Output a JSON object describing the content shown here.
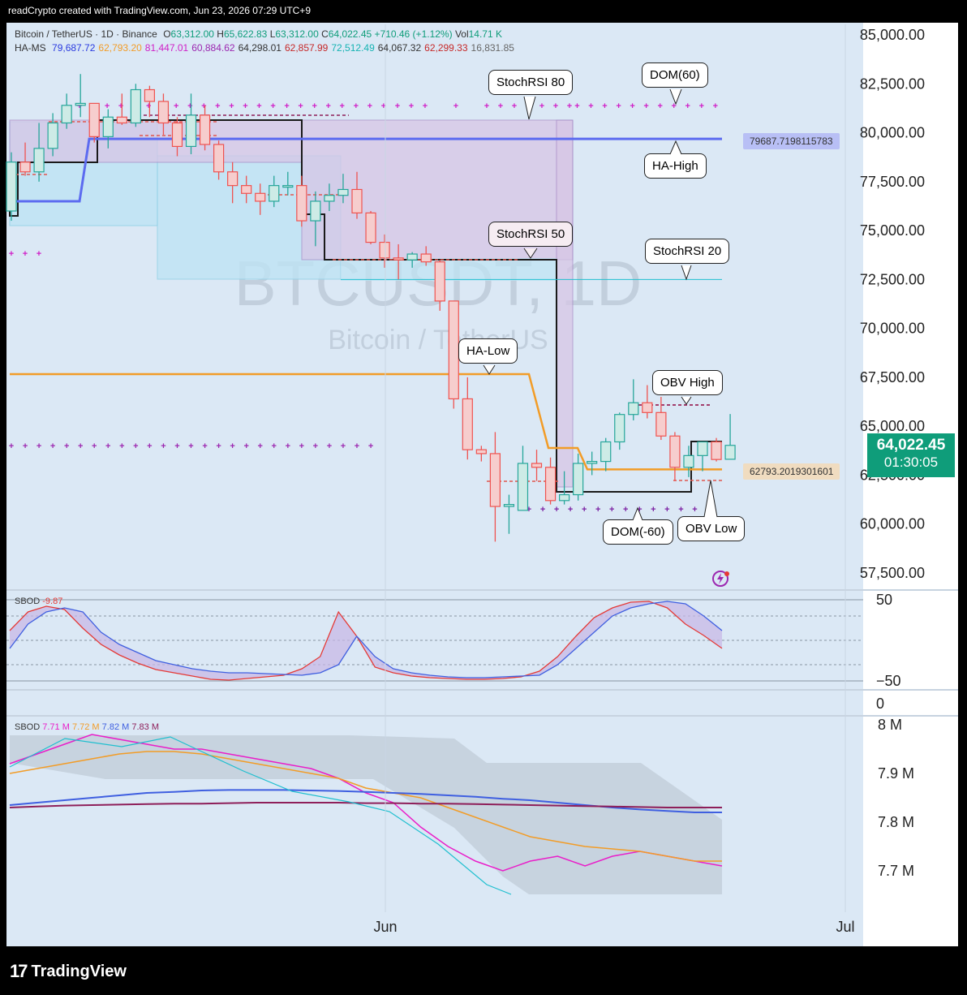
{
  "header": {
    "text": "readCrypto created with TradingView.com, Jun 23, 2026 07:29 UTC+9"
  },
  "legend": {
    "symbol": "Bitcoin / TetherUS · 1D · Binance",
    "o_label": "O",
    "o": "63,312.00",
    "h_label": "H",
    "h": "65,622.83",
    "l_label": "L",
    "l": "63,312.00",
    "c_label": "C",
    "c": "64,022.45",
    "change": "+710.46 (+1.12%)",
    "vol_label": "Vol",
    "vol": "14.71 K",
    "ha_ms_label": "HA-MS",
    "ha_ms_values": [
      {
        "v": "79,687.72",
        "color": "#2a3adf"
      },
      {
        "v": "62,793.20",
        "color": "#f29c27"
      },
      {
        "v": "81,447.01",
        "color": "#d01fc7"
      },
      {
        "v": "60,884.62",
        "color": "#9c27b0"
      },
      {
        "v": "64,298.01",
        "color": "#333333"
      },
      {
        "v": "62,857.99",
        "color": "#c62828"
      },
      {
        "v": "72,512.49",
        "color": "#16b3b3"
      },
      {
        "v": "64,067.32",
        "color": "#333333"
      },
      {
        "v": "62,299.33",
        "color": "#c62828"
      },
      {
        "v": "16,831.85",
        "color": "#666666"
      }
    ]
  },
  "watermark": {
    "symbol": "BTCUSDT, 1D",
    "name": "Bitcoin / TetherUS"
  },
  "annotations": {
    "stochrsi80": "StochRSI 80",
    "dom60": "DOM(60)",
    "ha_high": "HA-High",
    "stochrsi50": "StochRSI 50",
    "stochrsi20": "StochRSI 20",
    "ha_low": "HA-Low",
    "obv_high": "OBV High",
    "dom_neg60": "DOM(-60)",
    "obv_low": "OBV Low"
  },
  "tags": {
    "ha_high_tag": "79687.7198115783",
    "ha_low_tag": "62793.2019301601"
  },
  "price_box": {
    "price": "64,022.45",
    "countdown": "01:30:05"
  },
  "price_axis": [
    "85,000.00",
    "82,500.00",
    "80,000.00",
    "77,500.00",
    "75,000.00",
    "72,500.00",
    "70,000.00",
    "67,500.00",
    "65,000.00",
    "62,500.00",
    "60,000.00",
    "57,500.00"
  ],
  "sbod1": {
    "label": "SBOD",
    "value": "-9.87",
    "ticks": [
      "50",
      "−50",
      "0"
    ]
  },
  "sbod2": {
    "label": "SBOD",
    "v1": "7.71 M",
    "v2": "7.72 M",
    "v3": "7.82 M",
    "v4": "7.83 M",
    "ticks": [
      "8 M",
      "7.9 M",
      "7.8 M",
      "7.7 M"
    ]
  },
  "time_axis": [
    "Jun",
    "Jul"
  ],
  "footer": {
    "brand": "TradingView"
  },
  "colors": {
    "up": "#26a69a",
    "down": "#ef5350",
    "ha_high": "#5c6bf0",
    "ha_low": "#f29c27",
    "obv": "#1fbfcf",
    "price_box": "#0f9d7a"
  },
  "chart_data": [
    {
      "type": "candlestick",
      "title": "Bitcoin / TetherUS · 1D · Binance",
      "ylim": [
        56500,
        86000
      ],
      "candles": [
        {
          "o": 76000,
          "h": 79000,
          "l": 75500,
          "c": 78500
        },
        {
          "o": 78500,
          "h": 79500,
          "l": 77800,
          "c": 78000
        },
        {
          "o": 78000,
          "h": 80500,
          "l": 77500,
          "c": 79200
        },
        {
          "o": 79200,
          "h": 81000,
          "l": 78800,
          "c": 80500
        },
        {
          "o": 80500,
          "h": 82000,
          "l": 80200,
          "c": 81400
        },
        {
          "o": 81400,
          "h": 83000,
          "l": 80800,
          "c": 81500
        },
        {
          "o": 81500,
          "h": 81500,
          "l": 79500,
          "c": 79800
        },
        {
          "o": 79800,
          "h": 81200,
          "l": 79200,
          "c": 80800
        },
        {
          "o": 80800,
          "h": 82000,
          "l": 80400,
          "c": 80500
        },
        {
          "o": 80500,
          "h": 82500,
          "l": 80300,
          "c": 82200
        },
        {
          "o": 82200,
          "h": 82400,
          "l": 80800,
          "c": 81600
        },
        {
          "o": 81600,
          "h": 82000,
          "l": 79900,
          "c": 80500
        },
        {
          "o": 80500,
          "h": 80800,
          "l": 78800,
          "c": 79300
        },
        {
          "o": 79300,
          "h": 82000,
          "l": 78900,
          "c": 80900
        },
        {
          "o": 80900,
          "h": 81400,
          "l": 79100,
          "c": 79400
        },
        {
          "o": 79400,
          "h": 79600,
          "l": 77600,
          "c": 78000
        },
        {
          "o": 78000,
          "h": 78500,
          "l": 76400,
          "c": 77300
        },
        {
          "o": 77300,
          "h": 77800,
          "l": 76400,
          "c": 76900
        },
        {
          "o": 76900,
          "h": 77400,
          "l": 75800,
          "c": 76500
        },
        {
          "o": 76500,
          "h": 77800,
          "l": 76200,
          "c": 77300
        },
        {
          "o": 77300,
          "h": 78000,
          "l": 76800,
          "c": 77300
        },
        {
          "o": 77300,
          "h": 77800,
          "l": 75200,
          "c": 75500
        },
        {
          "o": 75500,
          "h": 77000,
          "l": 74200,
          "c": 76500
        },
        {
          "o": 76500,
          "h": 77400,
          "l": 76000,
          "c": 76800
        },
        {
          "o": 76800,
          "h": 77900,
          "l": 76400,
          "c": 77100
        },
        {
          "o": 77100,
          "h": 78000,
          "l": 75600,
          "c": 75900
        },
        {
          "o": 75900,
          "h": 76000,
          "l": 74300,
          "c": 74400
        },
        {
          "o": 74400,
          "h": 74800,
          "l": 73100,
          "c": 73600
        },
        {
          "o": 73600,
          "h": 74300,
          "l": 72500,
          "c": 73500
        },
        {
          "o": 73500,
          "h": 73900,
          "l": 73100,
          "c": 73800
        },
        {
          "o": 73800,
          "h": 74200,
          "l": 73200,
          "c": 73400
        },
        {
          "o": 73400,
          "h": 73500,
          "l": 70900,
          "c": 71400
        },
        {
          "o": 71400,
          "h": 71400,
          "l": 65900,
          "c": 66400
        },
        {
          "o": 66400,
          "h": 67500,
          "l": 63300,
          "c": 63800
        },
        {
          "o": 63800,
          "h": 64000,
          "l": 63200,
          "c": 63600
        },
        {
          "o": 63600,
          "h": 64700,
          "l": 59100,
          "c": 60900
        },
        {
          "o": 60900,
          "h": 61500,
          "l": 59500,
          "c": 61000
        },
        {
          "o": 60700,
          "h": 64000,
          "l": 60700,
          "c": 63100
        },
        {
          "o": 63100,
          "h": 63800,
          "l": 62200,
          "c": 62900
        },
        {
          "o": 62900,
          "h": 63400,
          "l": 61000,
          "c": 61200
        },
        {
          "o": 61200,
          "h": 62700,
          "l": 61000,
          "c": 61500
        },
        {
          "o": 61500,
          "h": 63600,
          "l": 61200,
          "c": 63100
        },
        {
          "o": 63100,
          "h": 63700,
          "l": 62500,
          "c": 63200
        },
        {
          "o": 63200,
          "h": 64400,
          "l": 62700,
          "c": 64200
        },
        {
          "o": 64200,
          "h": 65700,
          "l": 63800,
          "c": 65600
        },
        {
          "o": 65600,
          "h": 67400,
          "l": 65300,
          "c": 66200
        },
        {
          "o": 66200,
          "h": 67100,
          "l": 65400,
          "c": 65700
        },
        {
          "o": 65700,
          "h": 66500,
          "l": 64300,
          "c": 64500
        },
        {
          "o": 64500,
          "h": 64700,
          "l": 62200,
          "c": 62900
        },
        {
          "o": 62900,
          "h": 64000,
          "l": 62400,
          "c": 63500
        },
        {
          "o": 63500,
          "h": 64200,
          "l": 62700,
          "c": 64200
        },
        {
          "o": 64200,
          "h": 64400,
          "l": 63200,
          "c": 63300
        },
        {
          "o": 63312,
          "h": 65622.83,
          "l": 63312,
          "c": 64022.45
        }
      ],
      "lines": {
        "ha_high": 79687.72,
        "ha_low": 62793.2,
        "stochrsi20": 72500,
        "obv_high": 66100,
        "obv_low": 62300
      }
    },
    {
      "type": "line",
      "title": "SBOD",
      "ylim": [
        -60,
        60
      ],
      "series": [
        {
          "values": [
            12,
            35,
            42,
            38,
            15,
            -5,
            -18,
            -28,
            -36,
            -40,
            -44,
            -48,
            -49,
            -47,
            -45,
            -43,
            -35,
            -20,
            35,
            5,
            -33,
            -40,
            -44,
            -46,
            -47,
            -48,
            -48,
            -47,
            -45,
            -38,
            -20,
            5,
            28,
            40,
            47,
            48,
            40,
            20,
            6,
            -9.87
          ]
        },
        {
          "values": [
            -10,
            20,
            35,
            40,
            35,
            10,
            -5,
            -15,
            -25,
            -30,
            -35,
            -38,
            -40,
            -40,
            -41,
            -42,
            -43,
            -40,
            -30,
            5,
            -20,
            -35,
            -40,
            -43,
            -45,
            -46,
            -46,
            -45,
            -44,
            -43,
            -30,
            -10,
            10,
            30,
            40,
            45,
            48,
            45,
            30,
            12
          ]
        }
      ]
    },
    {
      "type": "line",
      "title": "SBOD",
      "ylim": [
        7.65,
        8.02
      ],
      "series": [
        {
          "name": "7.71 M",
          "values": [
            7.92,
            7.94,
            7.96,
            7.98,
            7.97,
            7.96,
            7.95,
            7.95,
            7.94,
            7.93,
            7.92,
            7.91,
            7.89,
            7.86,
            7.84,
            7.79,
            7.75,
            7.72,
            7.7,
            7.72,
            7.73,
            7.71,
            7.73,
            7.74,
            7.73,
            7.72,
            7.71
          ]
        },
        {
          "name": "7.72 M",
          "values": [
            7.9,
            7.91,
            7.92,
            7.93,
            7.94,
            7.945,
            7.945,
            7.94,
            7.93,
            7.92,
            7.91,
            7.9,
            7.89,
            7.87,
            7.86,
            7.85,
            7.83,
            7.81,
            7.79,
            7.77,
            7.76,
            7.75,
            7.745,
            7.74,
            7.73,
            7.72,
            7.72
          ]
        },
        {
          "name": "7.82 M",
          "values": [
            7.835,
            7.84,
            7.845,
            7.85,
            7.855,
            7.86,
            7.862,
            7.865,
            7.866,
            7.866,
            7.866,
            7.865,
            7.864,
            7.862,
            7.86,
            7.858,
            7.855,
            7.852,
            7.848,
            7.845,
            7.84,
            7.835,
            7.83,
            7.826,
            7.823,
            7.82,
            7.82
          ]
        },
        {
          "name": "7.83 M",
          "values": [
            7.83,
            7.832,
            7.834,
            7.835,
            7.836,
            7.837,
            7.838,
            7.838,
            7.839,
            7.84,
            7.84,
            7.84,
            7.84,
            7.839,
            7.839,
            7.838,
            7.838,
            7.837,
            7.836,
            7.835,
            7.834,
            7.833,
            7.832,
            7.831,
            7.83,
            7.83,
            7.83
          ]
        }
      ]
    }
  ]
}
